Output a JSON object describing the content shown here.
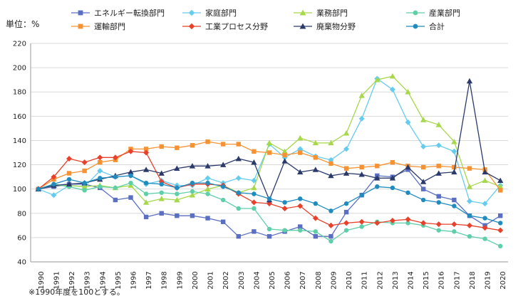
{
  "chart_data": {
    "type": "line",
    "unit_label": "単位：%",
    "footnote": "※1990年度を100とする。",
    "ylim": [
      40,
      220
    ],
    "yticks": [
      40,
      60,
      80,
      100,
      120,
      140,
      160,
      180,
      200,
      220
    ],
    "grid": "horizontal",
    "legend_position": "top",
    "x": [
      "1990",
      "1991",
      "1992",
      "1993",
      "1994",
      "1995",
      "1996",
      "1997",
      "1998",
      "1999",
      "2000",
      "2001",
      "2002",
      "2003",
      "2004",
      "2005",
      "2006",
      "2007",
      "2008",
      "2009",
      "2010",
      "2011",
      "2012",
      "2013",
      "2014",
      "2015",
      "2016",
      "2017",
      "2018",
      "2019",
      "2020"
    ],
    "series": [
      {
        "name": "エネルギー転換部門",
        "color": "#5b6fc2",
        "marker": "square",
        "values": [
          100,
          102,
          104,
          104,
          101,
          91,
          93,
          77,
          80,
          78,
          78,
          76,
          73,
          61,
          65,
          61,
          65,
          69,
          61,
          61,
          81,
          95,
          111,
          110,
          116,
          100,
          94,
          91,
          78,
          70,
          78
        ]
      },
      {
        "name": "家庭部門",
        "color": "#66ccee",
        "marker": "diamond",
        "values": [
          100,
          95,
          103,
          102,
          115,
          110,
          111,
          104,
          107,
          103,
          103,
          109,
          105,
          109,
          107,
          137,
          126,
          133,
          127,
          124,
          133,
          158,
          191,
          182,
          155,
          135,
          136,
          131,
          90,
          88,
          103
        ]
      },
      {
        "name": "業務部門",
        "color": "#a6d84a",
        "marker": "triangle",
        "values": [
          100,
          103,
          103,
          102,
          103,
          101,
          103,
          89,
          92,
          91,
          95,
          100,
          103,
          97,
          101,
          138,
          131,
          142,
          138,
          138,
          146,
          177,
          190,
          193,
          180,
          157,
          153,
          139,
          102,
          107,
          102
        ]
      },
      {
        "name": "産業部門",
        "color": "#5fcfa8",
        "marker": "circle",
        "values": [
          100,
          104,
          102,
          99,
          102,
          101,
          105,
          96,
          97,
          96,
          98,
          96,
          91,
          84,
          84,
          67,
          66,
          66,
          65,
          57,
          66,
          69,
          73,
          72,
          72,
          70,
          66,
          65,
          61,
          59,
          53
        ]
      },
      {
        "name": "運輸部門",
        "color": "#f79232",
        "marker": "square",
        "values": [
          100,
          108,
          113,
          115,
          122,
          124,
          133,
          133,
          135,
          134,
          136,
          139,
          137,
          137,
          131,
          130,
          128,
          130,
          126,
          121,
          117,
          118,
          119,
          122,
          119,
          118,
          119,
          118,
          117,
          116,
          99
        ]
      },
      {
        "name": "工業プロセス分野",
        "color": "#e8402b",
        "marker": "diamond",
        "values": [
          100,
          110,
          125,
          122,
          126,
          126,
          131,
          130,
          106,
          101,
          104,
          104,
          103,
          96,
          89,
          88,
          84,
          86,
          76,
          70,
          72,
          73,
          72,
          74,
          75,
          72,
          71,
          71,
          70,
          68,
          66
        ]
      },
      {
        "name": "廃棄物分野",
        "color": "#2b3a6b",
        "marker": "triangle",
        "values": [
          100,
          103,
          104,
          105,
          108,
          111,
          114,
          116,
          113,
          117,
          119,
          119,
          120,
          125,
          122,
          91,
          123,
          114,
          116,
          111,
          113,
          112,
          109,
          109,
          118,
          106,
          113,
          114,
          189,
          114,
          107
        ]
      },
      {
        "name": "合計",
        "color": "#1f8bbf",
        "marker": "circle",
        "values": [
          100,
          104,
          108,
          105,
          109,
          110,
          111,
          105,
          104,
          101,
          105,
          105,
          102,
          97,
          96,
          92,
          89,
          92,
          88,
          82,
          88,
          95,
          102,
          101,
          97,
          91,
          89,
          86,
          78,
          76,
          72
        ]
      }
    ]
  }
}
